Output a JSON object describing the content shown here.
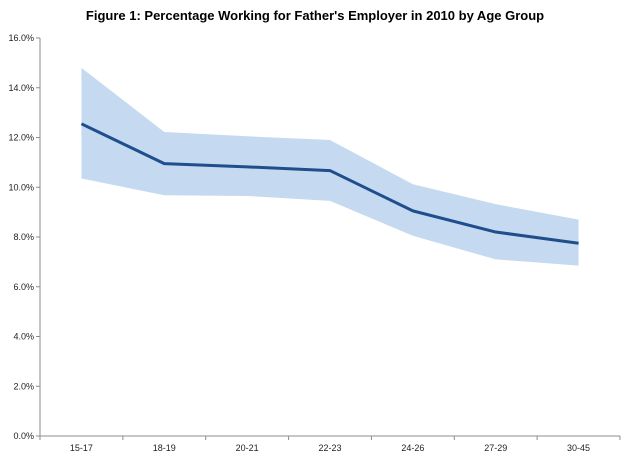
{
  "chart_data": {
    "type": "line",
    "title": "Figure 1: Percentage Working for Father's Employer in 2010 by Age Group",
    "xlabel": "",
    "ylabel": "",
    "categories": [
      "15-17",
      "18-19",
      "20-21",
      "22-23",
      "24-26",
      "27-29",
      "30-45"
    ],
    "series": [
      {
        "values": [
          12.55,
          10.95,
          10.82,
          10.67,
          9.05,
          8.2,
          7.75
        ]
      }
    ],
    "band": {
      "upper": [
        14.8,
        12.22,
        12.05,
        11.9,
        10.12,
        9.32,
        8.7
      ],
      "lower": [
        10.35,
        9.68,
        9.65,
        9.45,
        8.05,
        7.1,
        6.85
      ]
    },
    "ylim": [
      0,
      16
    ],
    "yticks": [
      "0.0%",
      "2.0%",
      "4.0%",
      "6.0%",
      "8.0%",
      "10.0%",
      "12.0%",
      "14.0%",
      "16.0%"
    ],
    "grid": false,
    "legend": "none",
    "colors": {
      "line": "#1f4e8c",
      "band": "#c5d9f1",
      "axis": "#8c8c8c"
    }
  }
}
